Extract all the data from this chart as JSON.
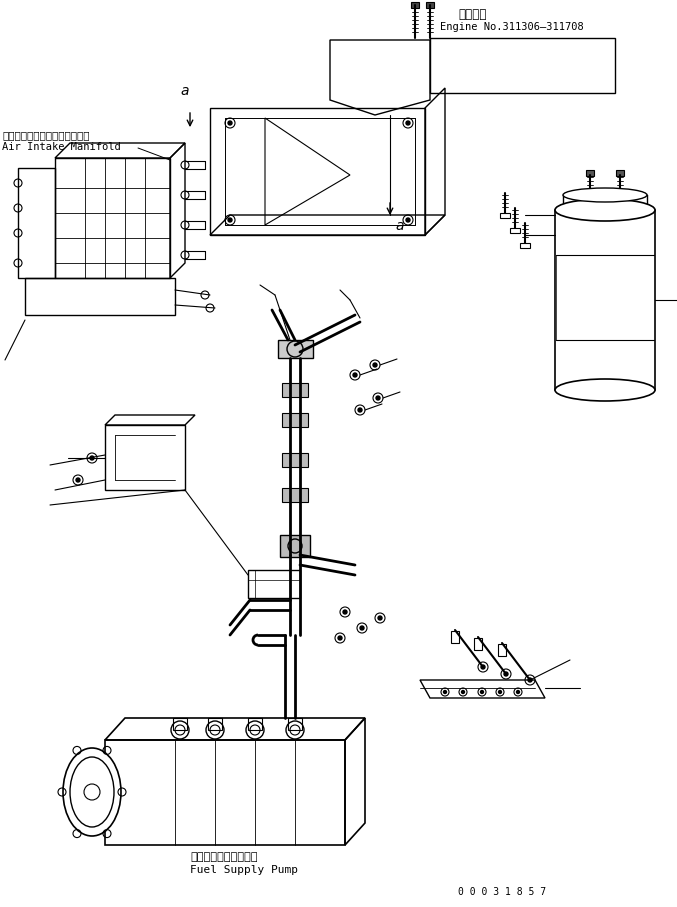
{
  "title": "",
  "bg_color": "#ffffff",
  "line_color": "#000000",
  "fig_width": 6.77,
  "fig_height": 9.07,
  "dpi": 100,
  "text_top_japanese": "適用号機",
  "text_top_english": "Engine No.311306―311708",
  "text_air_japanese": "エアーインテークマニホールド",
  "text_air_english": "Air Intake Manifold",
  "text_pump_japanese": "フェルサブライポンプ",
  "text_pump_english": "Fuel Supply Pump",
  "doc_number": "0 0 0 3 1 8 5 7"
}
